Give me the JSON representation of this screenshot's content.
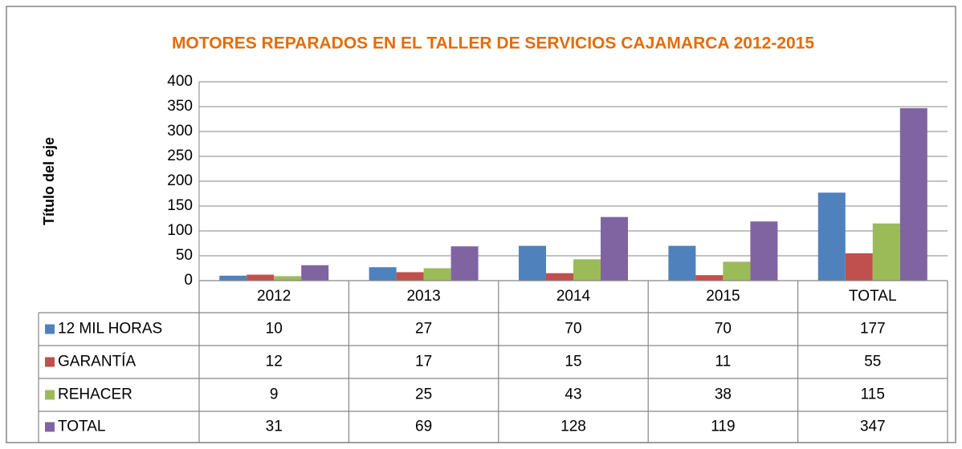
{
  "chart_data": {
    "type": "bar",
    "title": "MOTORES REPARADOS EN EL TALLER DE SERVICIOS CAJAMARCA 2012-2015",
    "y_label": "Título del eje",
    "categories": [
      "2012",
      "2013",
      "2014",
      "2015",
      "TOTAL"
    ],
    "series": [
      {
        "name": "12 MIL HORAS",
        "color": "#4f81bd",
        "values": [
          10,
          27,
          70,
          70,
          177
        ]
      },
      {
        "name": "GARANTÍA",
        "color": "#c0504d",
        "values": [
          12,
          17,
          15,
          11,
          55
        ]
      },
      {
        "name": "REHACER",
        "color": "#9bbb59",
        "values": [
          9,
          25,
          43,
          38,
          115
        ]
      },
      {
        "name": "TOTAL",
        "color": "#8064a2",
        "values": [
          31,
          69,
          128,
          119,
          347
        ]
      }
    ],
    "ylim": [
      0,
      400
    ],
    "yticks": [
      0,
      50,
      100,
      150,
      200,
      250,
      300,
      350,
      400
    ],
    "grid": true,
    "data_table": true
  }
}
